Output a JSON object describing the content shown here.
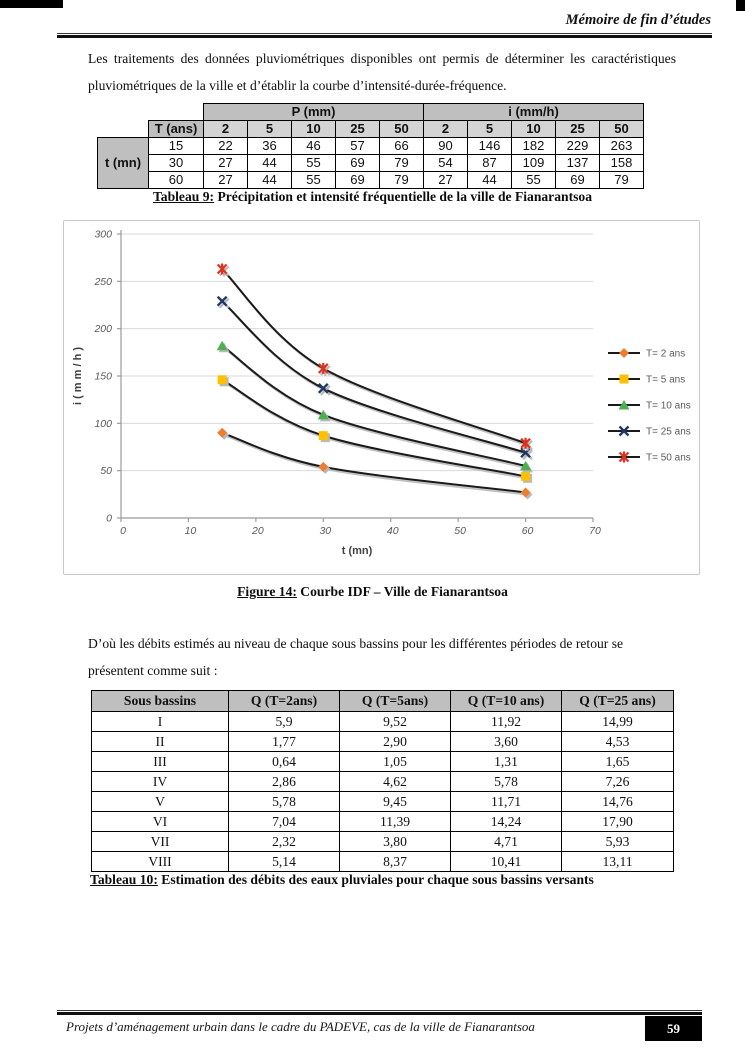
{
  "header": {
    "title": "Mémoire de fin d’études"
  },
  "paragraph1": "Les traitements des données pluviométriques disponibles ont permis de déterminer les caractéristiques pluviométriques de la ville et d’établir la courbe d’intensité-durée-fréquence.",
  "table9": {
    "group_headers": [
      "P (mm)",
      "i (mm/h)"
    ],
    "corner_label": "T (ans)",
    "row_label": "t (mn)",
    "t_headers": [
      "2",
      "5",
      "10",
      "25",
      "50",
      "2",
      "5",
      "10",
      "25",
      "50"
    ],
    "rows": [
      {
        "t": "15",
        "values": [
          "22",
          "36",
          "46",
          "57",
          "66",
          "90",
          "146",
          "182",
          "229",
          "263"
        ]
      },
      {
        "t": "30",
        "values": [
          "27",
          "44",
          "55",
          "69",
          "79",
          "54",
          "87",
          "109",
          "137",
          "158"
        ]
      },
      {
        "t": "60",
        "values": [
          "27",
          "44",
          "55",
          "69",
          "79",
          "27",
          "44",
          "55",
          "69",
          "79"
        ]
      }
    ],
    "caption_label": "Tableau 9:",
    "caption_text": " Précipitation et intensité fréquentielle de la ville de Fianarantsoa"
  },
  "chart_data": {
    "type": "line",
    "title": "",
    "x": [
      15,
      30,
      60
    ],
    "series": [
      {
        "name": "T= 2 ans",
        "values": [
          90,
          54,
          27
        ],
        "marker": "diamond",
        "color": "#ED7D31"
      },
      {
        "name": "T= 5 ans",
        "values": [
          146,
          87,
          44
        ],
        "marker": "square",
        "color": "#FFC000"
      },
      {
        "name": "T= 10 ans",
        "values": [
          182,
          109,
          55
        ],
        "marker": "triangle",
        "color": "#4CAF50"
      },
      {
        "name": "T= 25 ans",
        "values": [
          229,
          137,
          69
        ],
        "marker": "x",
        "color": "#1F3864"
      },
      {
        "name": "T= 50 ans",
        "values": [
          263,
          158,
          79
        ],
        "marker": "asterisk",
        "color": "#E0301E"
      }
    ],
    "xlabel": "t (mn)",
    "ylabel": "i ( m m / h )",
    "xlim": [
      0,
      70
    ],
    "ylim": [
      0,
      300
    ],
    "xticks": [
      0,
      10,
      20,
      30,
      40,
      50,
      60,
      70
    ],
    "yticks": [
      0,
      50,
      100,
      150,
      200,
      250,
      300
    ],
    "grid": true,
    "legend_position": "right",
    "line_color": "#1a1a1a",
    "grid_color": "#d9d9d9",
    "axis_color": "#9b9b9b",
    "tick_label_color": "#595959",
    "axis_title_color": "#404040"
  },
  "figure_caption": {
    "label": "Figure 14:",
    "text": " Courbe IDF – Ville de Fianarantsoa"
  },
  "paragraph2": "D’où les débits estimés au niveau de chaque sous bassins pour les différentes périodes de retour se présentent comme suit :",
  "table10": {
    "headers": [
      "Sous bassins",
      "Q (T=2ans)",
      "Q (T=5ans)",
      "Q (T=10 ans)",
      "Q (T=25 ans)"
    ],
    "rows": [
      [
        "I",
        "5,9",
        "9,52",
        "11,92",
        "14,99"
      ],
      [
        "II",
        "1,77",
        "2,90",
        "3,60",
        "4,53"
      ],
      [
        "III",
        "0,64",
        "1,05",
        "1,31",
        "1,65"
      ],
      [
        "IV",
        "2,86",
        "4,62",
        "5,78",
        "7,26"
      ],
      [
        "V",
        "5,78",
        "9,45",
        "11,71",
        "14,76"
      ],
      [
        "VI",
        "7,04",
        "11,39",
        "14,24",
        "17,90"
      ],
      [
        "VII",
        "2,32",
        "3,80",
        "4,71",
        "5,93"
      ],
      [
        "VIII",
        "5,14",
        "8,37",
        "10,41",
        "13,11"
      ]
    ],
    "caption_label": "Tableau 10:",
    "caption_text": " Estimation des débits des eaux pluviales pour chaque sous bassins versants"
  },
  "footer": {
    "text": "Projets d’aménagement urbain dans le cadre du PADEVE,  cas de la ville de Fianarantsoa",
    "page": "59"
  }
}
